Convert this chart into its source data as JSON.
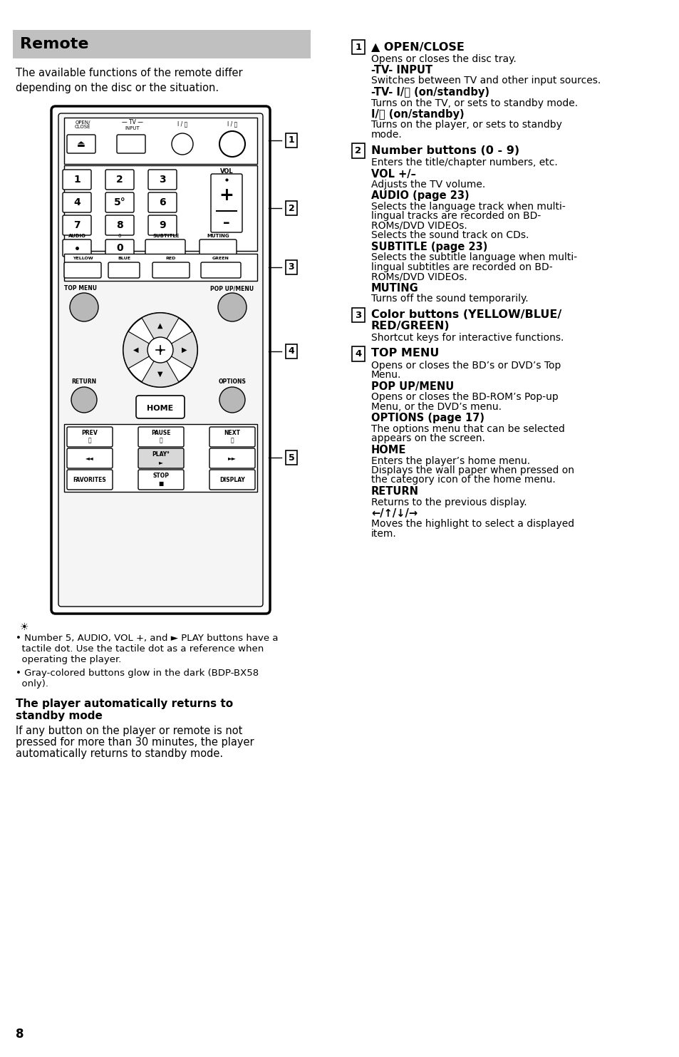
{
  "page_background": "#ffffff",
  "title": "Remote",
  "title_bg": "#c0c0c0",
  "page_number": "8",
  "intro": "The available functions of the remote differ\ndepending on the disc or the situation.",
  "notes": [
    "Number 5, AUDIO, VOL +, and ► PLAY buttons have a tactile dot. Use the tactile dot as a reference when operating the player.",
    "Gray-colored buttons glow in the dark (BDP-BX58 only)."
  ],
  "standby_heading": "The player automatically returns to standby mode",
  "standby_body": "If any button on the player or remote is not pressed for more than 30 minutes, the player automatically returns to standby mode.",
  "right_sections": [
    {
      "number": "1",
      "heading": "▲ OPEN/CLOSE",
      "items": [
        {
          "type": "body",
          "text": "Opens or closes the disc tray."
        },
        {
          "type": "subhead",
          "text": "-TV- INPUT"
        },
        {
          "type": "body",
          "text": "Switches between TV and other input sources."
        },
        {
          "type": "subhead",
          "text": "-TV- I/⏻ (on/standby)"
        },
        {
          "type": "body",
          "text": "Turns on the TV, or sets to standby mode."
        },
        {
          "type": "subhead",
          "text": "I/⏻ (on/standby)"
        },
        {
          "type": "body",
          "text": "Turns on the player, or sets to standby\nmode."
        }
      ]
    },
    {
      "number": "2",
      "heading": "Number buttons (0 - 9)",
      "items": [
        {
          "type": "body",
          "text": "Enters the title/chapter numbers, etc."
        },
        {
          "type": "subhead",
          "text": "VOL +/–"
        },
        {
          "type": "body",
          "text": "Adjusts the TV volume."
        },
        {
          "type": "subhead",
          "text": "AUDIO (page 23)"
        },
        {
          "type": "body",
          "text": "Selects the language track when multi-\nlingual tracks are recorded on BD-\nROMs/DVD VIDEOs.\nSelects the sound track on CDs."
        },
        {
          "type": "subhead",
          "text": "SUBTITLE (page 23)"
        },
        {
          "type": "body",
          "text": "Selects the subtitle language when multi-\nlingual subtitles are recorded on BD-\nROMs/DVD VIDEOs."
        },
        {
          "type": "subhead",
          "text": "MUTING"
        },
        {
          "type": "body",
          "text": "Turns off the sound temporarily."
        }
      ]
    },
    {
      "number": "3",
      "heading": "Color buttons (YELLOW/BLUE/\nRED/GREEN)",
      "items": [
        {
          "type": "body",
          "text": "Shortcut keys for interactive functions."
        }
      ]
    },
    {
      "number": "4",
      "heading": "TOP MENU",
      "items": [
        {
          "type": "body",
          "text": "Opens or closes the BD’s or DVD’s Top\nMenu."
        },
        {
          "type": "subhead",
          "text": "POP UP/MENU"
        },
        {
          "type": "body",
          "text": "Opens or closes the BD-ROM’s Pop-up\nMenu, or the DVD’s menu."
        },
        {
          "type": "subhead",
          "text": "OPTIONS (page 17)"
        },
        {
          "type": "body",
          "text": "The options menu that can be selected\nappears on the screen."
        },
        {
          "type": "subhead",
          "text": "HOME"
        },
        {
          "type": "body",
          "text": "Enters the player’s home menu.\nDisplays the wall paper when pressed on\nthe category icon of the home menu."
        },
        {
          "type": "subhead",
          "text": "RETURN"
        },
        {
          "type": "body",
          "text": "Returns to the previous display."
        },
        {
          "type": "subhead",
          "text": "←/↑/↓/→"
        },
        {
          "type": "body",
          "text": "Moves the highlight to select a displayed\nitem."
        }
      ]
    }
  ]
}
